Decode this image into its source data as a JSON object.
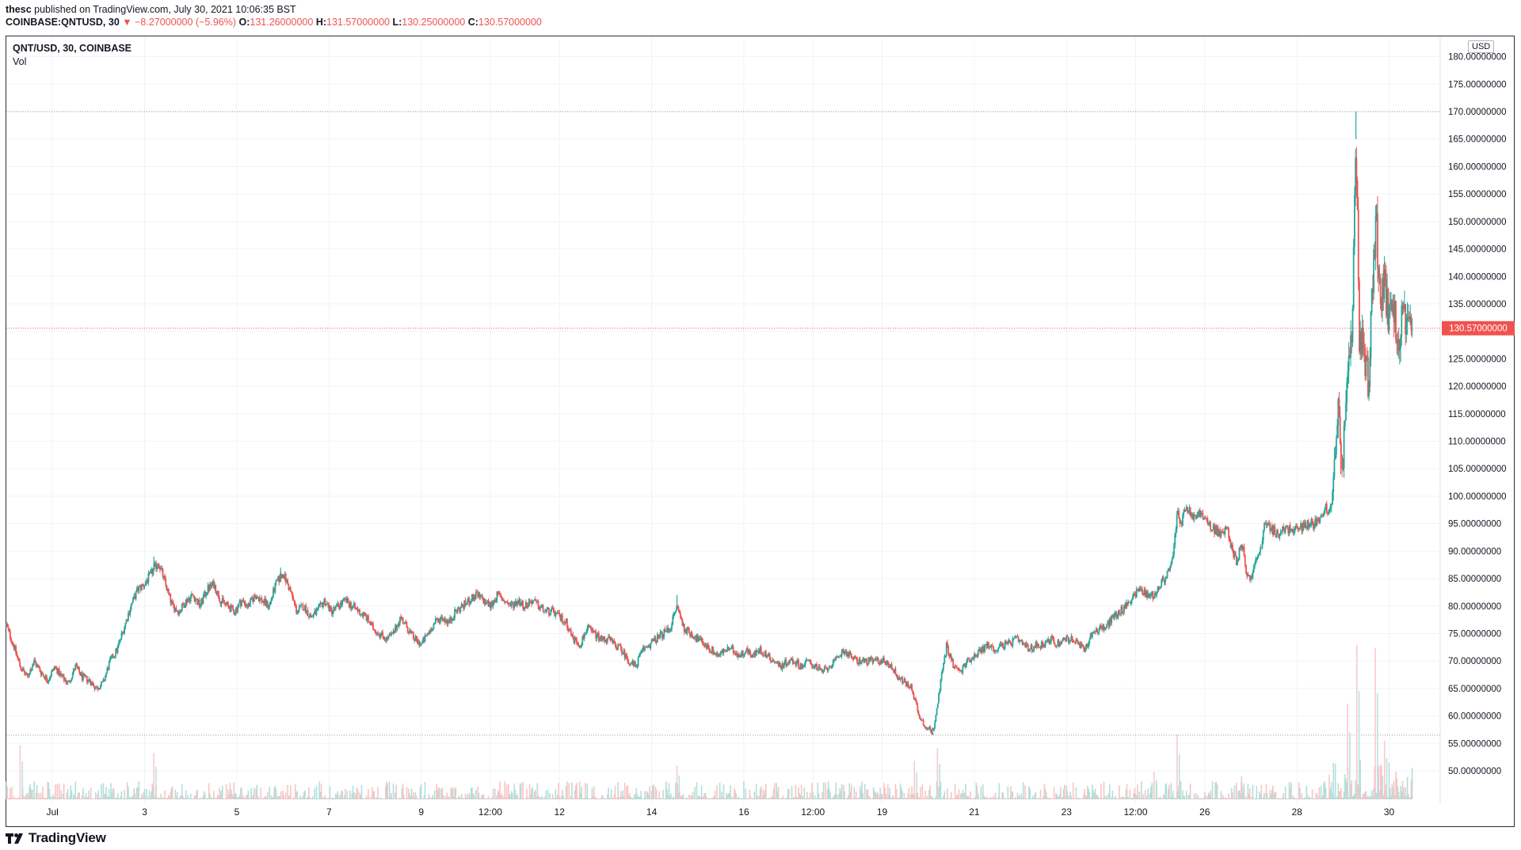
{
  "header": {
    "publisher": "thesc",
    "published_text": "published on TradingView.com, July 30, 2021 10:06:35 BST",
    "symbol": "COINBASE:QNTUSD, 30",
    "change_arrow": "▼",
    "change": "−8.27000000 (−5.96%)",
    "o_label": "O:",
    "o_value": "131.26000000",
    "h_label": "H:",
    "h_value": "131.57000000",
    "l_label": "L:",
    "l_value": "130.25000000",
    "c_label": "C:",
    "c_value": "130.57000000"
  },
  "chart_title": "QNT/USD, 30, COINBASE",
  "volume_label": "Vol",
  "currency": "USD",
  "footer": {
    "brand": "TradingView",
    "logo_icon": "tradingview-logo-icon"
  },
  "colors": {
    "up": "#26a69a",
    "down": "#ef5350",
    "vol_up": "#b2dfdb",
    "vol_down": "#f8c4c4",
    "grid": "#f0f3fa",
    "last_price": "#ef5350"
  },
  "chart_data": {
    "type": "candlestick",
    "title": "QNT/USD, 30, COINBASE",
    "ylabel": "USD",
    "ylim": [
      45,
      182.5
    ],
    "y_ticks": [
      "50.00000000",
      "55.00000000",
      "60.00000000",
      "65.00000000",
      "70.00000000",
      "75.00000000",
      "80.00000000",
      "85.00000000",
      "90.00000000",
      "95.00000000",
      "100.00000000",
      "105.00000000",
      "110.00000000",
      "115.00000000",
      "120.00000000",
      "125.00000000",
      "130.00000000",
      "135.00000000",
      "140.00000000",
      "145.00000000",
      "150.00000000",
      "155.00000000",
      "160.00000000",
      "165.00000000",
      "170.00000000",
      "175.00000000",
      "180.00000000"
    ],
    "x_ticks": [
      {
        "label": "Jul",
        "day": 1.0
      },
      {
        "label": "3",
        "day": 3.0
      },
      {
        "label": "5",
        "day": 5.0
      },
      {
        "label": "7",
        "day": 7.0
      },
      {
        "label": "9",
        "day": 9.0
      },
      {
        "label": "12:00",
        "day": 10.5
      },
      {
        "label": "12",
        "day": 12.0
      },
      {
        "label": "14",
        "day": 14.0
      },
      {
        "label": "16",
        "day": 16.0
      },
      {
        "label": "12:00",
        "day": 17.5
      },
      {
        "label": "19",
        "day": 19.0
      },
      {
        "label": "21",
        "day": 21.0
      },
      {
        "label": "23",
        "day": 23.0
      },
      {
        "label": "12:00",
        "day": 24.5
      },
      {
        "label": "26",
        "day": 26.0
      },
      {
        "label": "28",
        "day": 28.0
      },
      {
        "label": "30",
        "day": 30.0
      }
    ],
    "x_range_days": [
      0.0,
      30.85
    ],
    "last_price": 130.57,
    "last_price_label": "130.57000000",
    "period_high": 170.0,
    "period_low": 56.5,
    "price_path": [
      [
        0.0,
        76.5
      ],
      [
        0.15,
        73
      ],
      [
        0.3,
        69
      ],
      [
        0.45,
        67
      ],
      [
        0.6,
        70
      ],
      [
        0.75,
        68
      ],
      [
        0.9,
        66.5
      ],
      [
        1.05,
        69
      ],
      [
        1.2,
        67
      ],
      [
        1.35,
        66
      ],
      [
        1.5,
        69
      ],
      [
        1.65,
        67
      ],
      [
        1.8,
        66.5
      ],
      [
        1.95,
        65
      ],
      [
        2.1,
        66
      ],
      [
        2.25,
        70
      ],
      [
        2.4,
        72
      ],
      [
        2.55,
        76
      ],
      [
        2.7,
        80
      ],
      [
        2.85,
        83
      ],
      [
        3.0,
        84
      ],
      [
        3.15,
        86
      ],
      [
        3.3,
        88
      ],
      [
        3.45,
        84
      ],
      [
        3.6,
        80
      ],
      [
        3.75,
        79
      ],
      [
        3.9,
        81
      ],
      [
        4.05,
        82
      ],
      [
        4.2,
        80
      ],
      [
        4.35,
        83
      ],
      [
        4.5,
        84
      ],
      [
        4.65,
        81
      ],
      [
        4.8,
        80
      ],
      [
        4.95,
        79
      ],
      [
        5.1,
        81
      ],
      [
        5.25,
        80
      ],
      [
        5.4,
        82
      ],
      [
        5.55,
        81
      ],
      [
        5.7,
        80
      ],
      [
        5.85,
        84
      ],
      [
        6.0,
        86
      ],
      [
        6.15,
        83
      ],
      [
        6.3,
        79
      ],
      [
        6.45,
        80
      ],
      [
        6.6,
        78
      ],
      [
        6.75,
        79
      ],
      [
        6.9,
        81
      ],
      [
        7.05,
        79
      ],
      [
        7.2,
        80
      ],
      [
        7.35,
        81
      ],
      [
        7.5,
        80
      ],
      [
        7.65,
        79
      ],
      [
        7.8,
        78
      ],
      [
        7.95,
        76
      ],
      [
        8.1,
        75
      ],
      [
        8.25,
        74
      ],
      [
        8.4,
        75
      ],
      [
        8.55,
        78
      ],
      [
        8.7,
        76
      ],
      [
        8.85,
        74
      ],
      [
        9.0,
        73
      ],
      [
        9.15,
        75
      ],
      [
        9.3,
        77
      ],
      [
        9.45,
        78
      ],
      [
        9.6,
        77
      ],
      [
        9.75,
        79
      ],
      [
        9.9,
        80
      ],
      [
        10.05,
        81
      ],
      [
        10.2,
        82
      ],
      [
        10.35,
        81
      ],
      [
        10.5,
        80
      ],
      [
        10.65,
        82
      ],
      [
        10.8,
        81
      ],
      [
        10.95,
        80
      ],
      [
        11.1,
        81
      ],
      [
        11.25,
        80
      ],
      [
        11.4,
        81
      ],
      [
        11.55,
        80
      ],
      [
        11.7,
        79
      ],
      [
        11.85,
        79
      ],
      [
        12.0,
        78
      ],
      [
        12.15,
        77
      ],
      [
        12.3,
        74
      ],
      [
        12.45,
        73
      ],
      [
        12.6,
        76
      ],
      [
        12.75,
        75
      ],
      [
        12.9,
        74
      ],
      [
        13.05,
        74
      ],
      [
        13.2,
        73
      ],
      [
        13.35,
        72
      ],
      [
        13.5,
        70
      ],
      [
        13.65,
        69
      ],
      [
        13.8,
        72
      ],
      [
        13.95,
        73
      ],
      [
        14.1,
        74
      ],
      [
        14.25,
        75
      ],
      [
        14.4,
        76
      ],
      [
        14.55,
        80
      ],
      [
        14.7,
        76
      ],
      [
        14.85,
        75
      ],
      [
        15.0,
        74
      ],
      [
        15.15,
        73
      ],
      [
        15.3,
        72
      ],
      [
        15.45,
        71
      ],
      [
        15.6,
        72
      ],
      [
        15.75,
        72
      ],
      [
        15.9,
        71
      ],
      [
        16.05,
        72
      ],
      [
        16.2,
        71
      ],
      [
        16.35,
        72
      ],
      [
        16.5,
        71
      ],
      [
        16.65,
        70
      ],
      [
        16.8,
        69
      ],
      [
        16.95,
        70
      ],
      [
        17.1,
        70
      ],
      [
        17.25,
        69
      ],
      [
        17.4,
        70
      ],
      [
        17.55,
        69
      ],
      [
        17.7,
        68
      ],
      [
        17.85,
        69
      ],
      [
        18.0,
        70
      ],
      [
        18.15,
        72
      ],
      [
        18.3,
        71
      ],
      [
        18.45,
        70
      ],
      [
        18.6,
        70
      ],
      [
        18.75,
        70
      ],
      [
        18.9,
        70
      ],
      [
        19.05,
        70
      ],
      [
        19.2,
        69
      ],
      [
        19.35,
        67
      ],
      [
        19.5,
        66
      ],
      [
        19.65,
        65
      ],
      [
        19.8,
        60
      ],
      [
        19.95,
        58
      ],
      [
        20.1,
        57
      ],
      [
        20.25,
        65
      ],
      [
        20.4,
        73
      ],
      [
        20.55,
        69
      ],
      [
        20.7,
        68
      ],
      [
        20.85,
        70
      ],
      [
        21.0,
        71
      ],
      [
        21.15,
        72
      ],
      [
        21.3,
        73
      ],
      [
        21.45,
        72
      ],
      [
        21.6,
        73
      ],
      [
        21.75,
        73
      ],
      [
        21.9,
        74
      ],
      [
        22.05,
        73
      ],
      [
        22.2,
        72
      ],
      [
        22.35,
        73
      ],
      [
        22.5,
        73
      ],
      [
        22.65,
        74
      ],
      [
        22.8,
        73
      ],
      [
        22.95,
        74
      ],
      [
        23.1,
        74
      ],
      [
        23.25,
        73
      ],
      [
        23.4,
        72
      ],
      [
        23.55,
        75
      ],
      [
        23.7,
        76
      ],
      [
        23.85,
        76
      ],
      [
        24.0,
        78
      ],
      [
        24.15,
        79
      ],
      [
        24.3,
        80
      ],
      [
        24.45,
        82
      ],
      [
        24.6,
        83
      ],
      [
        24.75,
        82
      ],
      [
        24.9,
        82
      ],
      [
        25.05,
        84
      ],
      [
        25.2,
        86
      ],
      [
        25.3,
        88
      ],
      [
        25.4,
        97
      ],
      [
        25.5,
        95
      ],
      [
        25.6,
        98
      ],
      [
        25.75,
        96
      ],
      [
        25.9,
        97
      ],
      [
        26.05,
        95
      ],
      [
        26.2,
        94
      ],
      [
        26.35,
        93
      ],
      [
        26.5,
        94
      ],
      [
        26.6,
        90
      ],
      [
        26.7,
        88
      ],
      [
        26.8,
        92
      ],
      [
        26.9,
        86
      ],
      [
        27.0,
        85
      ],
      [
        27.1,
        88
      ],
      [
        27.2,
        90
      ],
      [
        27.3,
        95
      ],
      [
        27.45,
        94
      ],
      [
        27.6,
        93
      ],
      [
        27.75,
        94
      ],
      [
        27.9,
        94
      ],
      [
        28.05,
        94
      ],
      [
        28.2,
        95
      ],
      [
        28.35,
        95
      ],
      [
        28.5,
        96
      ],
      [
        28.6,
        98
      ],
      [
        28.7,
        97
      ],
      [
        28.8,
        105
      ],
      [
        28.9,
        115
      ],
      [
        29.0,
        106
      ],
      [
        29.1,
        125
      ],
      [
        29.2,
        128
      ],
      [
        29.28,
        165
      ],
      [
        29.35,
        130
      ],
      [
        29.45,
        127
      ],
      [
        29.55,
        121
      ],
      [
        29.65,
        140
      ],
      [
        29.72,
        150
      ],
      [
        29.8,
        135
      ],
      [
        29.9,
        138
      ],
      [
        30.0,
        132
      ],
      [
        30.1,
        134
      ],
      [
        30.2,
        128
      ],
      [
        30.3,
        133
      ],
      [
        30.4,
        129
      ],
      [
        30.5,
        130.57
      ]
    ],
    "spikes": [
      {
        "day": 29.28,
        "high": 170.0
      },
      {
        "day": 29.72,
        "high": 153.0
      },
      {
        "day": 29.55,
        "low": 119.0
      },
      {
        "day": 28.95,
        "low": 104.0
      },
      {
        "day": 20.1,
        "low": 56.5
      },
      {
        "day": 3.2,
        "high": 89.0
      },
      {
        "day": 5.95,
        "high": 87.0
      },
      {
        "day": 14.55,
        "high": 82.0
      }
    ],
    "volume_spikes": [
      {
        "day": 25.4,
        "rel": 0.42
      },
      {
        "day": 29.1,
        "rel": 0.62
      },
      {
        "day": 29.3,
        "rel": 1.0
      },
      {
        "day": 29.7,
        "rel": 0.98
      },
      {
        "day": 29.9,
        "rel": 0.38
      },
      {
        "day": 20.2,
        "rel": 0.33
      },
      {
        "day": 3.2,
        "rel": 0.3
      },
      {
        "day": 14.55,
        "rel": 0.22
      },
      {
        "day": 0.3,
        "rel": 0.35
      },
      {
        "day": 19.7,
        "rel": 0.25
      },
      {
        "day": 24.9,
        "rel": 0.18
      },
      {
        "day": 26.8,
        "rel": 0.15
      },
      {
        "day": 28.7,
        "rel": 0.16
      }
    ]
  }
}
